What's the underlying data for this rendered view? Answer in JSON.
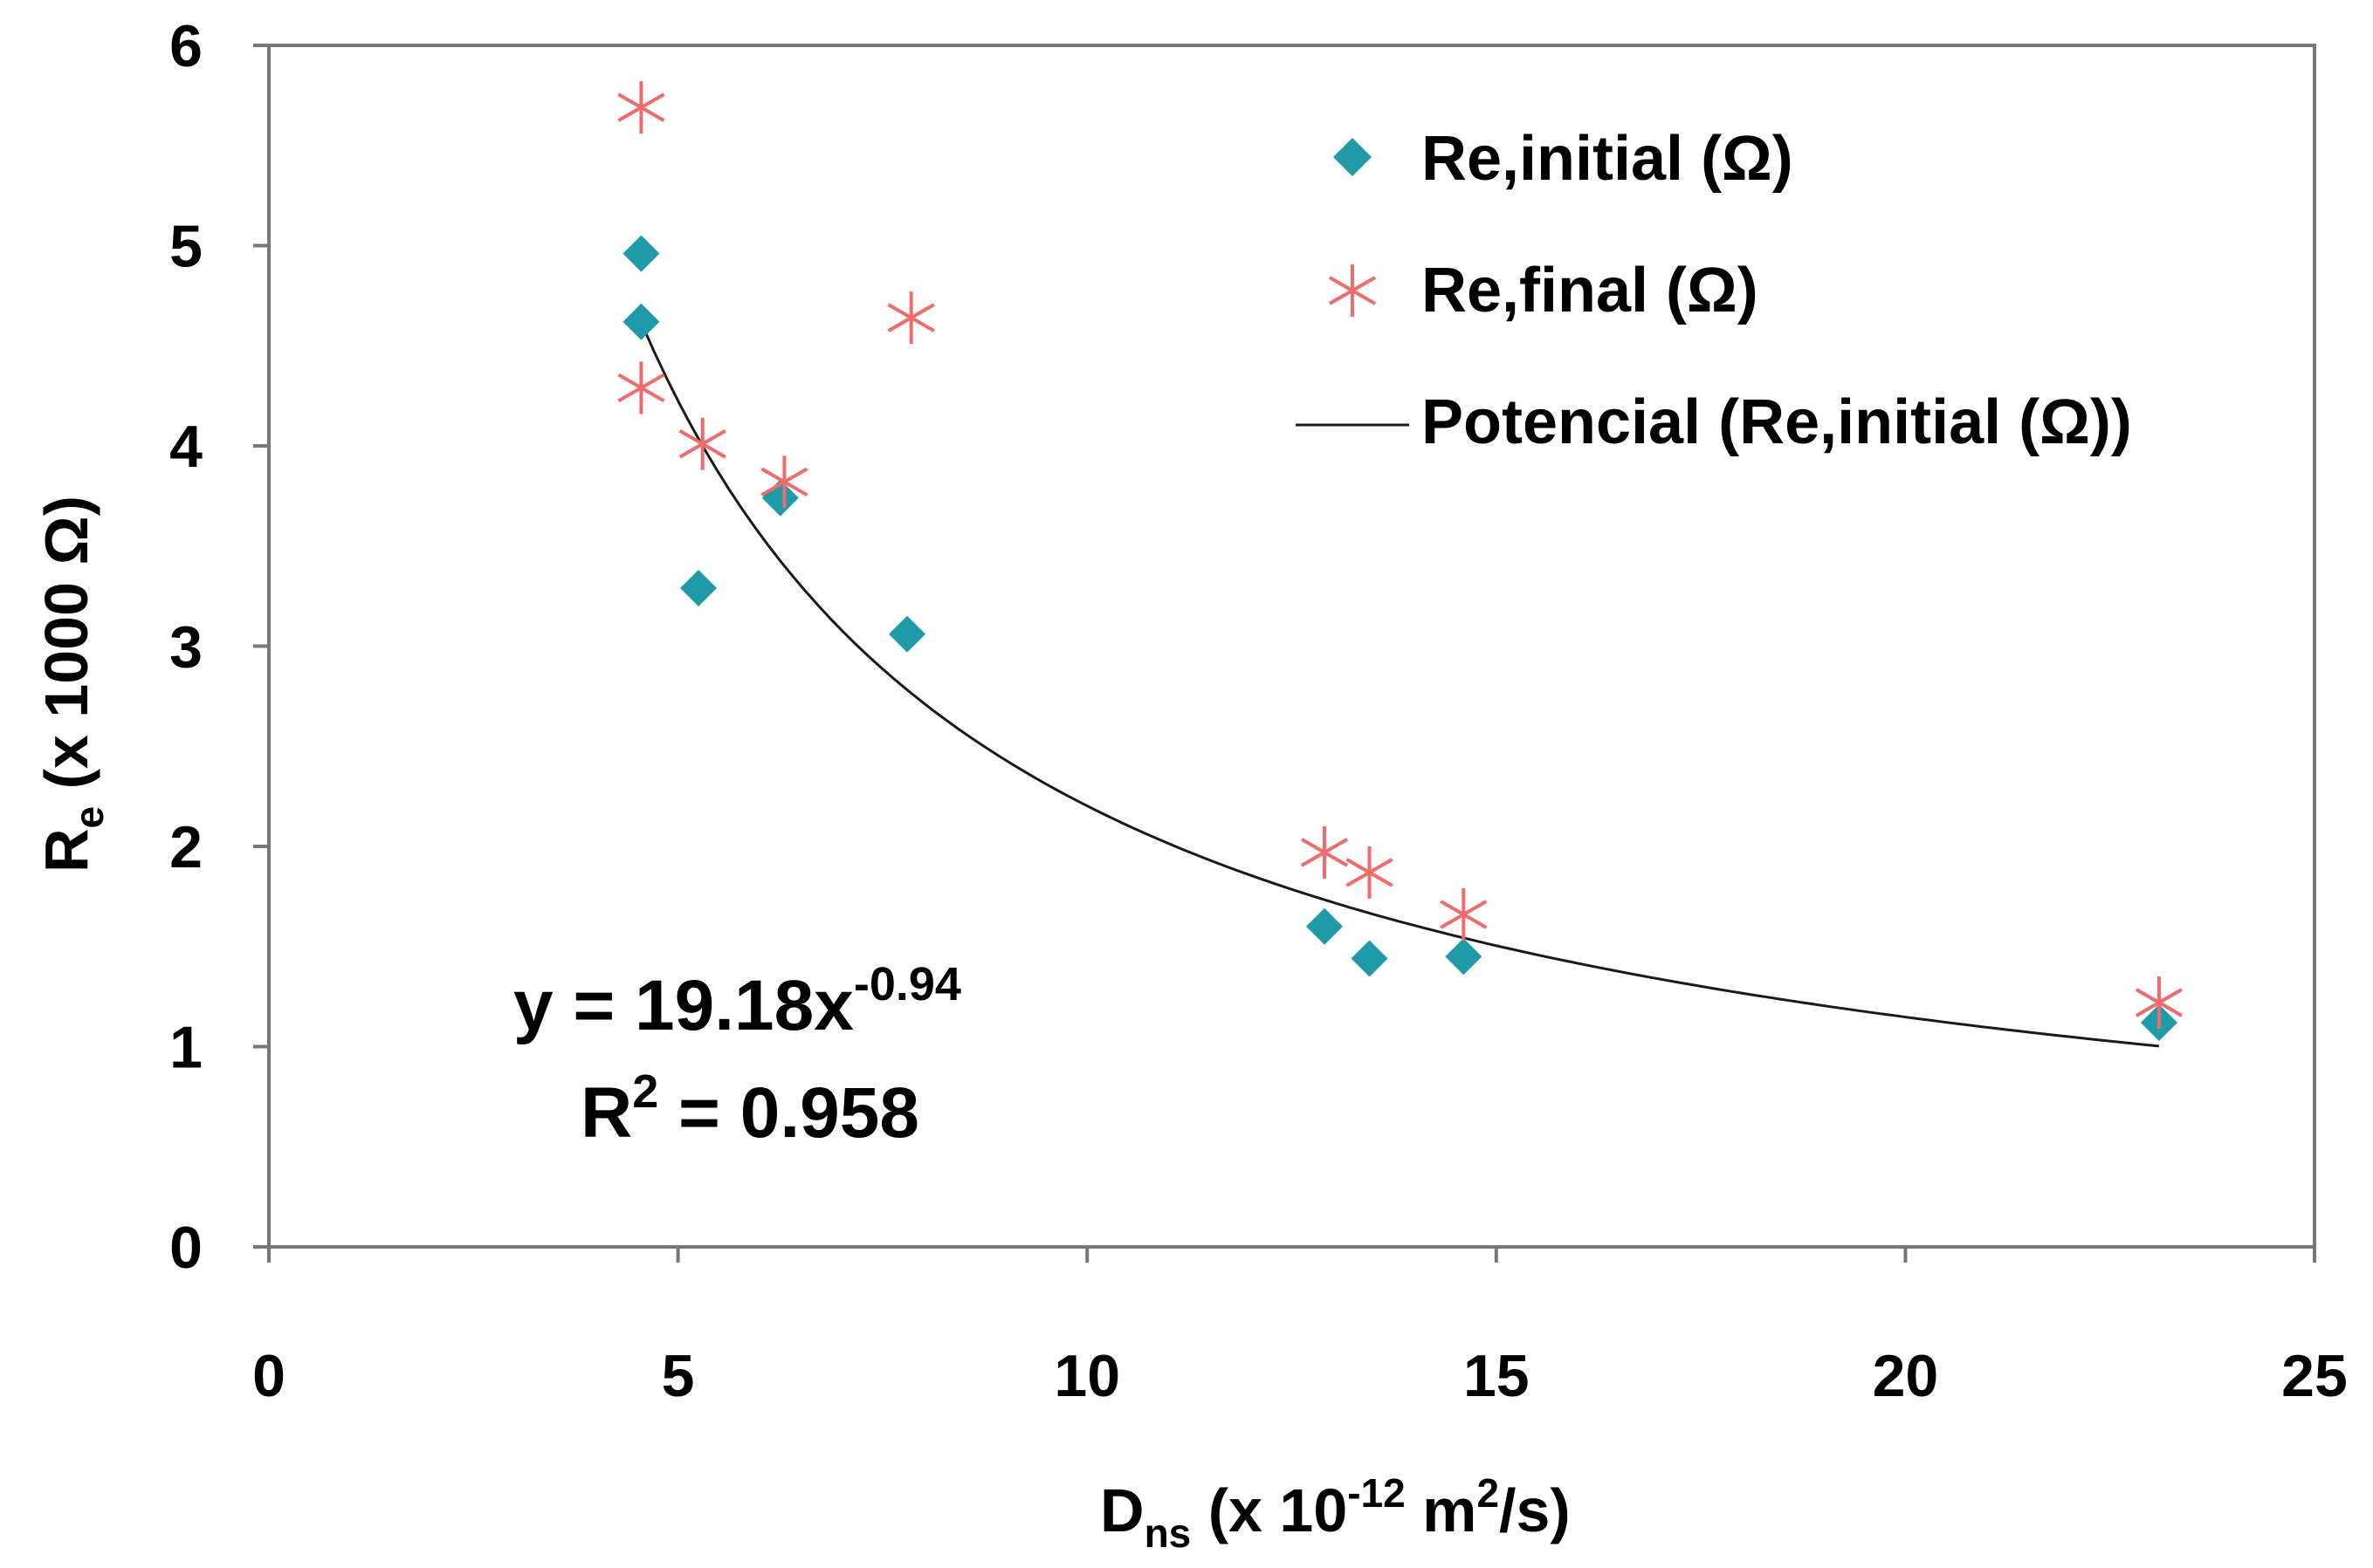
{
  "chart_data": {
    "type": "scatter",
    "title": "",
    "xlabel": {
      "main": "D",
      "sub": "ns",
      "rest_before_sup": " (x 10",
      "sup": "-12",
      "rest_mid": " m",
      "sup2": "2",
      "rest_end": "/s)"
    },
    "ylabel": {
      "main": "R",
      "sub": "e",
      "rest": " (x 1000 Ω)"
    },
    "xlim": [
      0,
      25
    ],
    "ylim": [
      0,
      6
    ],
    "x_ticks": [
      0,
      5,
      10,
      15,
      20,
      25
    ],
    "y_ticks": [
      0,
      1,
      2,
      3,
      4,
      5,
      6
    ],
    "x_tick_labels": [
      "0",
      "5",
      "10",
      "15",
      "20",
      "25"
    ],
    "y_tick_labels": [
      "0",
      "1",
      "2",
      "3",
      "4",
      "5",
      "6"
    ],
    "grid": false,
    "legend_position": "top-right",
    "series": [
      {
        "name": "Re,initial (Ω)",
        "marker": "diamond",
        "color": "#1f9aa8",
        "x": [
          4.55,
          4.55,
          5.25,
          6.25,
          7.8,
          12.9,
          13.45,
          14.6,
          23.1
        ],
        "y": [
          4.96,
          4.62,
          3.29,
          3.74,
          3.06,
          1.6,
          1.44,
          1.45,
          1.12
        ]
      },
      {
        "name": "Re,final (Ω)",
        "marker": "asterisk",
        "color": "#f06b6b",
        "x": [
          4.55,
          4.55,
          5.3,
          6.3,
          7.85,
          12.9,
          13.45,
          14.6,
          23.1
        ],
        "y": [
          5.69,
          4.29,
          4.01,
          3.82,
          4.64,
          1.97,
          1.87,
          1.66,
          1.22
        ]
      }
    ],
    "trendline": {
      "name": "Potencial (Re,initial (Ω))",
      "type": "power",
      "a": 19.18,
      "b": -0.94,
      "x_range": [
        4.55,
        23.1
      ],
      "color": "#1a1a1a"
    },
    "annotations": {
      "equation_prefix": "y = 19.18x",
      "equation_exponent": "-0.94",
      "r2_prefix": "R",
      "r2_sup": "2",
      "r2_suffix": " = 0.958"
    }
  }
}
